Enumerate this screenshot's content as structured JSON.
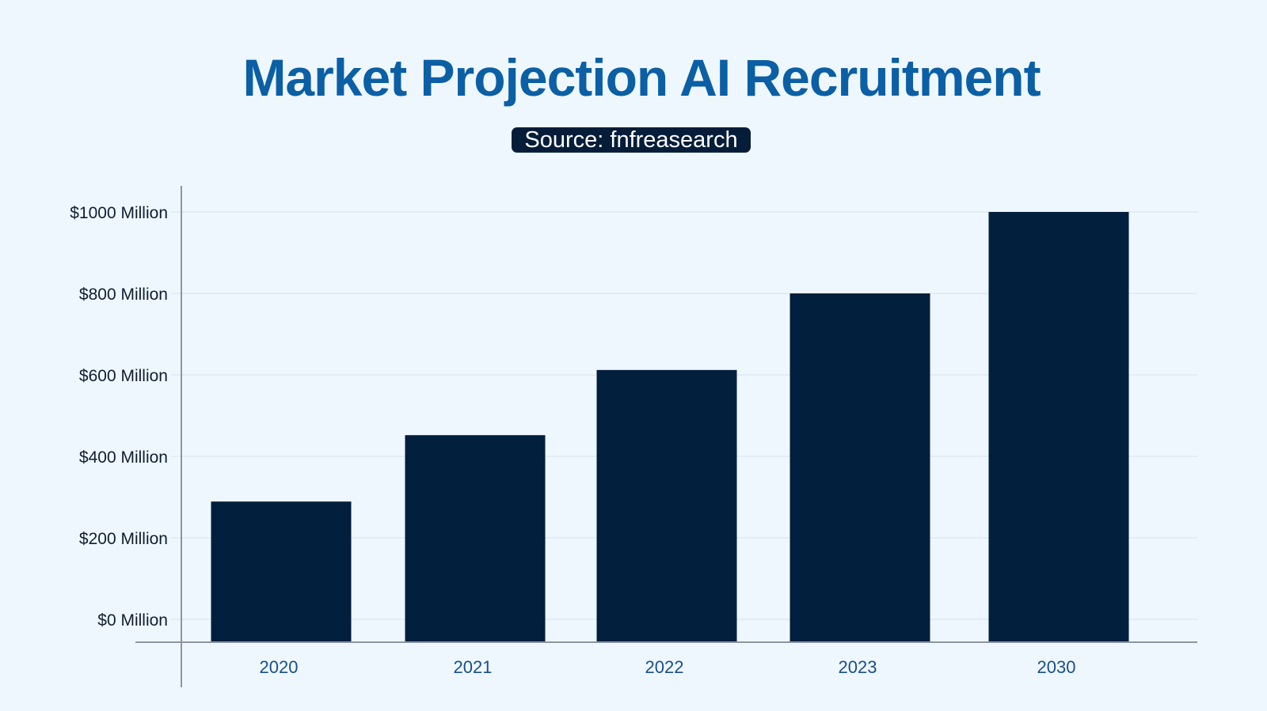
{
  "header": {
    "title": "Market Projection AI Recruitment",
    "source": "Source: fnfreasearch"
  },
  "colors": {
    "background": "#eff7fe",
    "title": "#0b5fa5",
    "bar": "#021f3d",
    "source_badge": "#061d3a",
    "category_label": "#16508c"
  },
  "chart_data": {
    "type": "bar",
    "title": "Market Projection AI Recruitment",
    "subtitle": "Source: fnfreasearch",
    "xlabel": "",
    "ylabel": "",
    "categories": [
      "2020",
      "2021",
      "2022",
      "2023",
      "2030"
    ],
    "values": [
      289,
      452,
      612,
      800,
      1000
    ],
    "ylim": [
      0,
      1000
    ],
    "yticks": [
      {
        "value": 0,
        "label": "$0 Million"
      },
      {
        "value": 200,
        "label": "$200 Million"
      },
      {
        "value": 400,
        "label": "$400 Million"
      },
      {
        "value": 600,
        "label": "$600 Million"
      },
      {
        "value": 800,
        "label": "$800 Million"
      },
      {
        "value": 1000,
        "label": "$1000 Million"
      }
    ],
    "grid": true,
    "legend": "none"
  }
}
